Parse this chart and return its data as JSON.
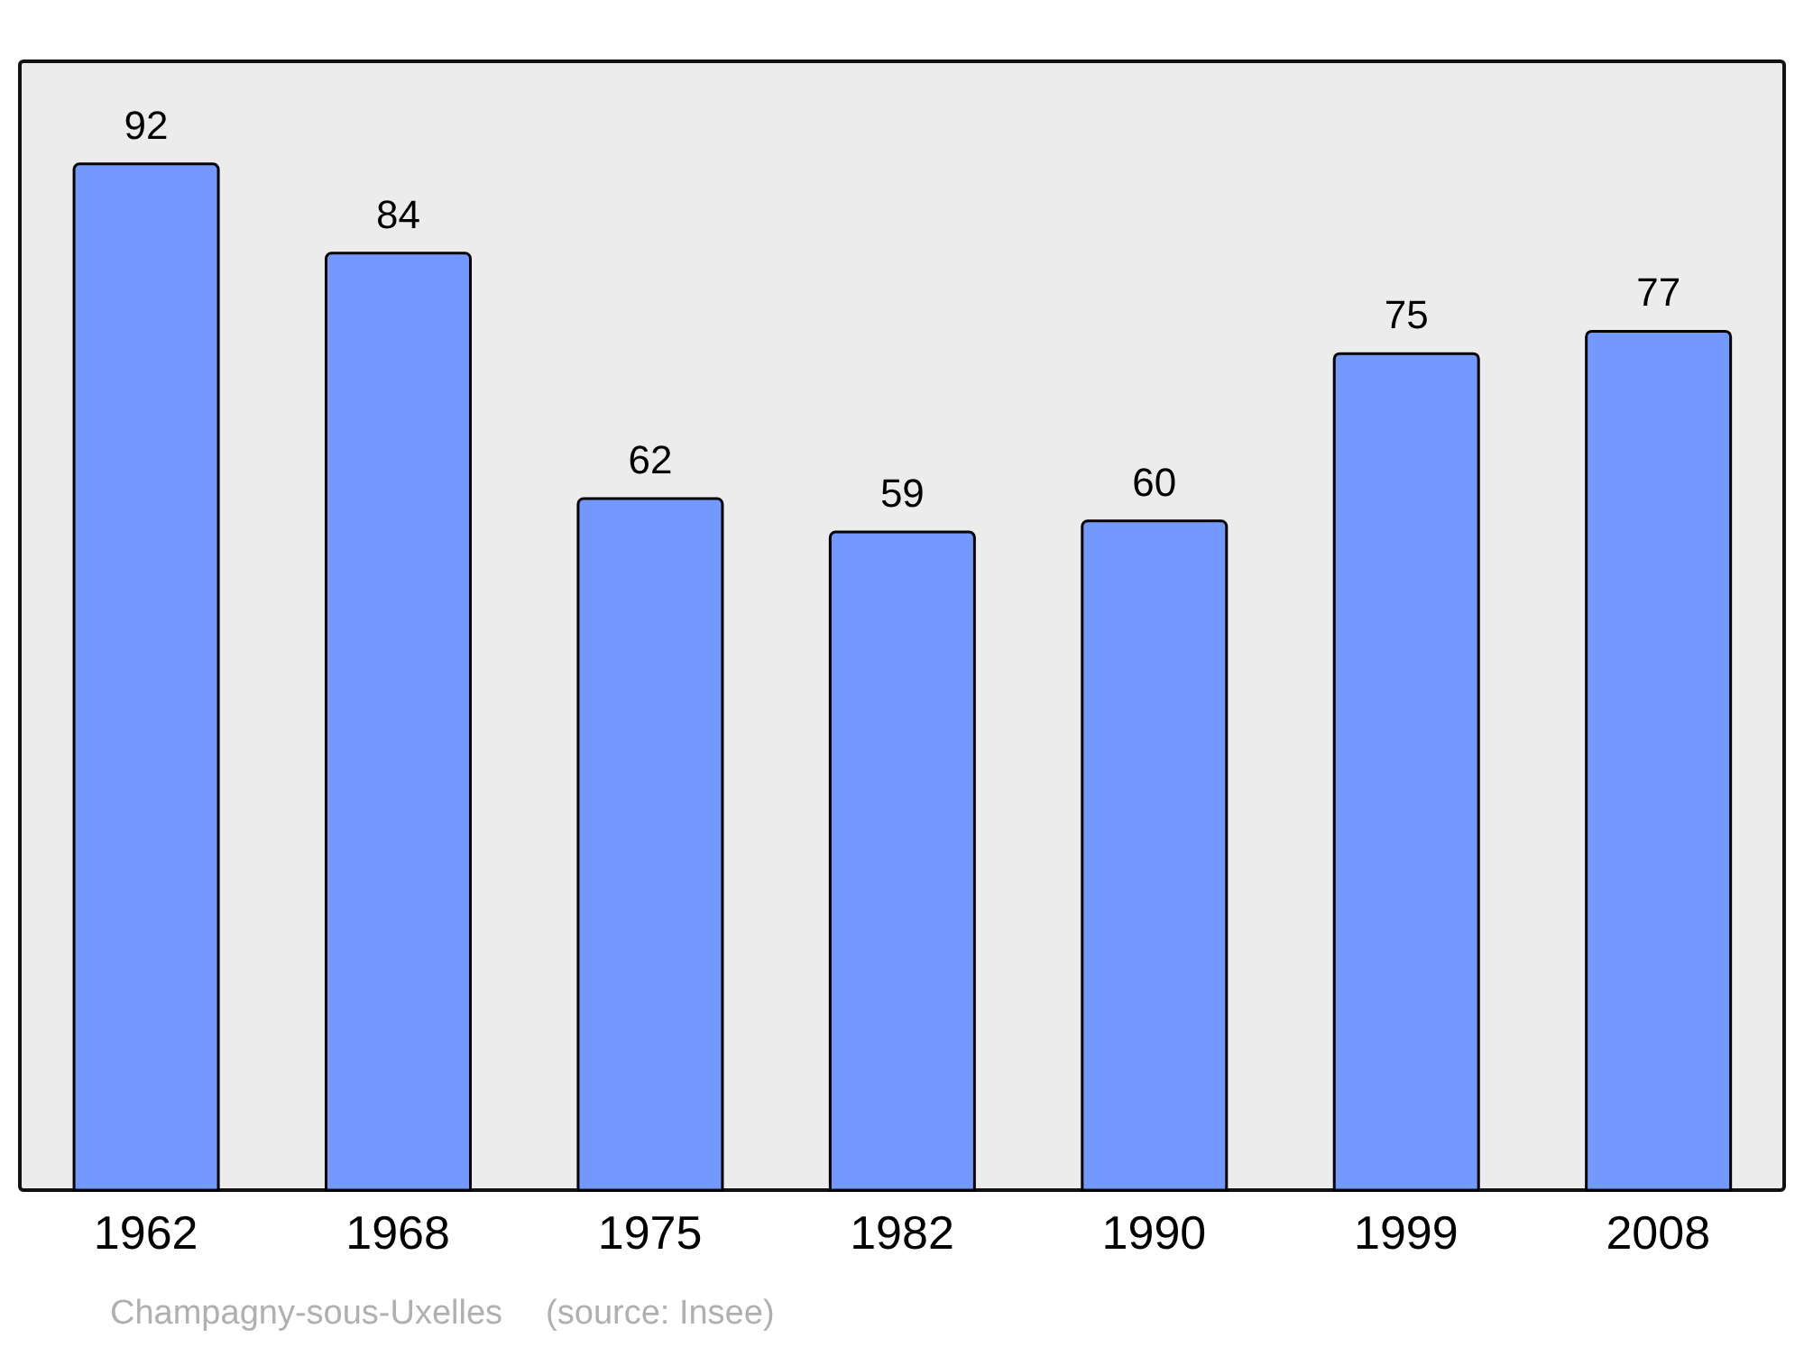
{
  "chart_data": {
    "type": "bar",
    "categories": [
      "1962",
      "1968",
      "1975",
      "1982",
      "1990",
      "1999",
      "2008"
    ],
    "values": [
      92,
      84,
      62,
      59,
      60,
      75,
      77
    ],
    "color": "#7399ff",
    "data_labels": true,
    "annotations": [
      "Champagny-sous-Uxelles",
      "(source: Insee)"
    ]
  }
}
